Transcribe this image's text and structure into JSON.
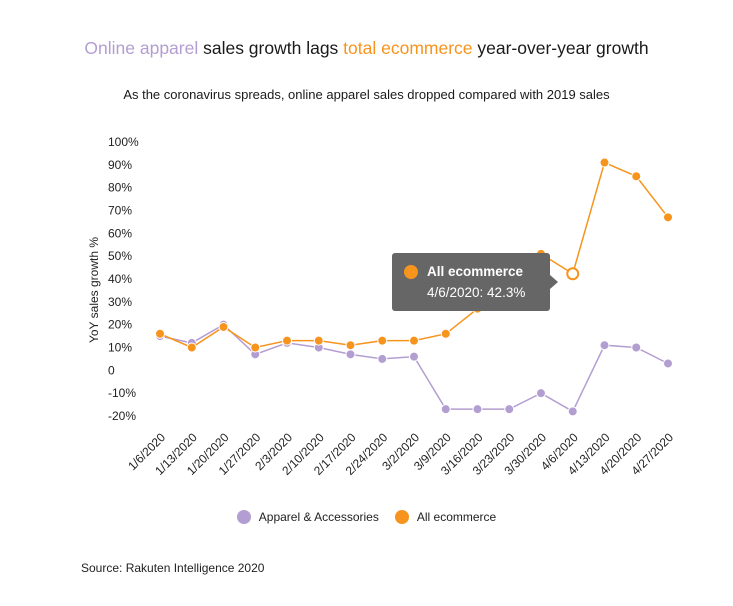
{
  "title": {
    "part1": "Online apparel",
    "part2": " sales growth lags ",
    "part3": "total ecommerce",
    "part4": " year-over-year growth"
  },
  "subtitle": "As the coronavirus spreads, online apparel sales dropped compared with 2019 sales",
  "source": "Source: Rakuten Intelligence 2020",
  "colors": {
    "apparel": "#b39ed1",
    "ecommerce": "#f7941d",
    "tooltip_bg": "#666666"
  },
  "tooltip": {
    "series": "All ecommerce",
    "value": "4/6/2020: 42.3%"
  },
  "chart_data": {
    "type": "line",
    "title": "Online apparel sales growth lags total ecommerce year-over-year growth",
    "ylabel": "YoY sales growth %",
    "xlabel": "",
    "ylim": [
      -20,
      100
    ],
    "yticks": [
      "100%",
      "90%",
      "80%",
      "70%",
      "60%",
      "50%",
      "40%",
      "30%",
      "20%",
      "10%",
      "0",
      "-10%",
      "-20%"
    ],
    "ytick_values": [
      100,
      90,
      80,
      70,
      60,
      50,
      40,
      30,
      20,
      10,
      0,
      -10,
      -20
    ],
    "categories": [
      "1/6/2020",
      "1/13/2020",
      "1/20/2020",
      "1/27/2020",
      "2/3/2020",
      "2/10/2020",
      "2/17/2020",
      "2/24/2020",
      "3/2/2020",
      "3/9/2020",
      "3/16/2020",
      "3/23/2020",
      "3/30/2020",
      "4/6/2020",
      "4/13/2020",
      "4/20/2020",
      "4/27/2020"
    ],
    "series": [
      {
        "name": "Apparel & Accessories",
        "color": "#b39ed1",
        "values": [
          15,
          12,
          20,
          7,
          12,
          10,
          7,
          5,
          6,
          -17,
          -17,
          -17,
          -10,
          -18,
          11,
          10,
          3
        ]
      },
      {
        "name": "All ecommerce",
        "color": "#f7941d",
        "values": [
          16,
          10,
          19,
          10,
          13,
          13,
          11,
          13,
          13,
          16,
          27,
          42,
          51,
          42.3,
          91,
          85,
          67
        ]
      }
    ],
    "highlight": {
      "series": 1,
      "index": 13
    },
    "legend": "bottom-center",
    "grid": false
  }
}
